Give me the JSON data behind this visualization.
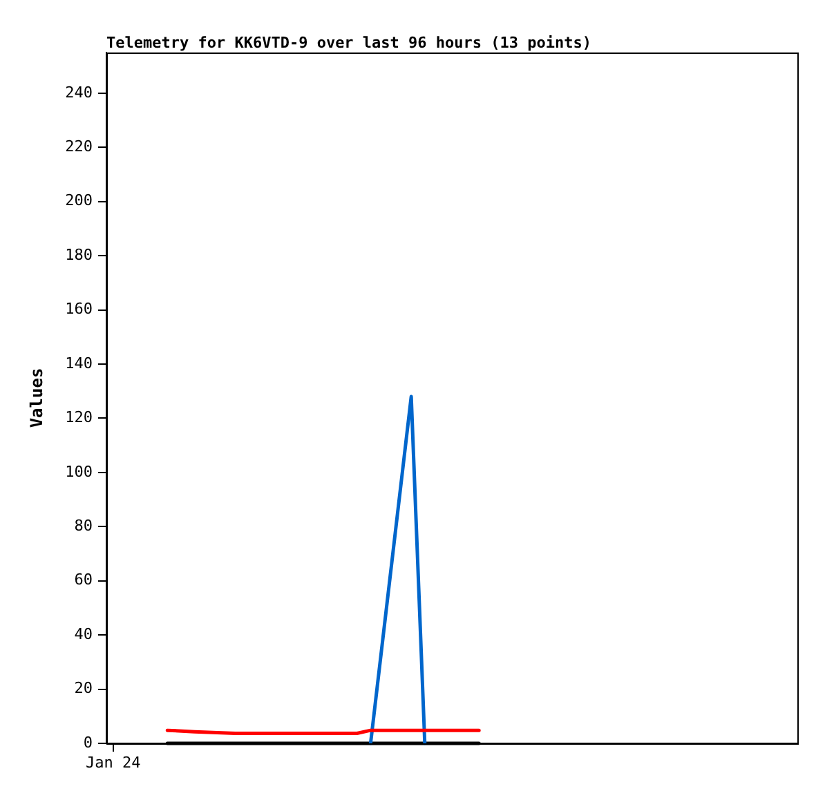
{
  "chart_data": {
    "type": "line",
    "title": "Telemetry for KK6VTD-9 over last 96 hours (13 points)",
    "ylabel": "Values",
    "categories": [
      "Jan 24",
      null,
      null,
      null,
      null,
      null,
      null,
      null,
      null,
      null,
      null,
      null,
      null,
      null,
      null,
      null,
      null,
      null,
      null,
      null,
      null,
      null,
      null,
      null,
      null,
      null,
      null,
      null,
      null,
      null,
      null,
      null,
      null,
      null,
      null,
      null,
      null,
      null,
      null,
      null,
      null,
      null,
      null,
      null,
      null,
      null,
      null,
      null,
      null,
      null,
      null
    ],
    "series": [
      {
        "color": "#ff0000",
        "values": [
          null,
          null,
          null,
          null,
          4.8,
          null,
          4.3,
          null,
          null,
          3.7,
          null,
          null,
          null,
          null,
          null,
          null,
          null,
          null,
          3.7,
          4.8,
          null,
          null,
          null,
          null,
          null,
          null,
          null,
          4.8,
          null,
          null,
          null,
          null,
          null,
          null,
          null,
          null,
          null,
          null,
          null,
          null,
          null,
          null,
          null,
          null,
          null,
          null,
          null,
          null,
          null,
          null,
          null
        ]
      },
      {
        "color": "#0066cc",
        "values": [
          null,
          null,
          null,
          null,
          null,
          null,
          null,
          null,
          null,
          null,
          null,
          null,
          null,
          null,
          null,
          null,
          null,
          null,
          null,
          0,
          null,
          null,
          128,
          0,
          null,
          null,
          null,
          null,
          null,
          null,
          null,
          null,
          null,
          null,
          null,
          null,
          null,
          null,
          null,
          null,
          null,
          null,
          null,
          null,
          null,
          null,
          null,
          null,
          null,
          null,
          null
        ]
      },
      {
        "color": "#000000",
        "values": [
          null,
          null,
          null,
          null,
          0,
          null,
          null,
          null,
          null,
          null,
          null,
          null,
          null,
          null,
          null,
          null,
          null,
          null,
          null,
          null,
          null,
          null,
          null,
          null,
          null,
          null,
          null,
          0,
          null,
          null,
          null,
          null,
          null,
          null,
          null,
          null,
          null,
          null,
          null,
          null,
          null,
          null,
          null,
          null,
          null,
          null,
          null,
          null,
          null,
          null,
          null
        ]
      }
    ],
    "ylim": [
      0,
      255
    ],
    "yticks": [
      0,
      20,
      40,
      60,
      80,
      100,
      120,
      140,
      160,
      180,
      200,
      220,
      240
    ],
    "grid": false,
    "legend": false,
    "marker": "none",
    "line_style": "solid"
  }
}
